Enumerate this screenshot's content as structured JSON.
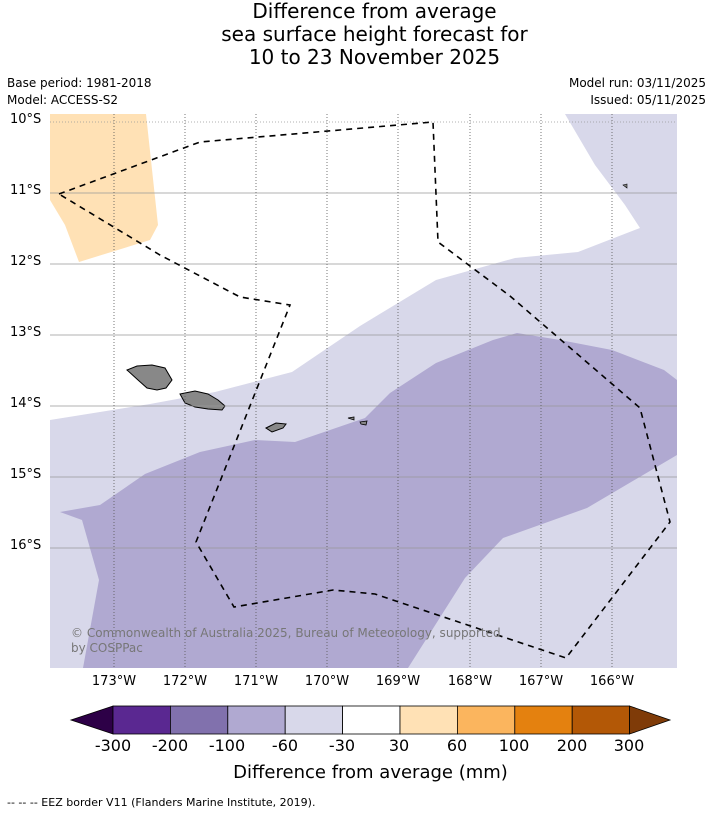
{
  "title_lines": [
    "Difference from average",
    "sea surface height forecast for",
    "10 to 23 November 2025"
  ],
  "meta": {
    "base_period": "Base period: 1981-2018",
    "model": "Model: ACCESS-S2",
    "model_run": "Model run: 03/11/2025",
    "issued": "Issued: 05/11/2025"
  },
  "lat_labels": [
    "10°S",
    "11°S",
    "12°S",
    "13°S",
    "14°S",
    "15°S",
    "16°S"
  ],
  "lon_labels": [
    "173°W",
    "172°W",
    "171°W",
    "170°W",
    "169°W",
    "168°W",
    "167°W",
    "166°W"
  ],
  "copyright": "© Commonwealth of Australia 2025, Bureau of Meteorology, supported by COSPPac",
  "colorbar": {
    "ticks": [
      "-300",
      "-200",
      "-100",
      "-60",
      "-30",
      "30",
      "60",
      "100",
      "200",
      "300"
    ],
    "colors": [
      "#2d0047",
      "#5a2891",
      "#8171ad",
      "#b0a9d1",
      "#d8d8ea",
      "#ffffff",
      "#ffe1b5",
      "#fbb55e",
      "#e4810f",
      "#b35806",
      "#7f3b08"
    ],
    "title": "Difference from average (mm)"
  },
  "legend_footer": "--  --  -- EEZ border V11 (Flanders Marine Institute, 2019)."
}
